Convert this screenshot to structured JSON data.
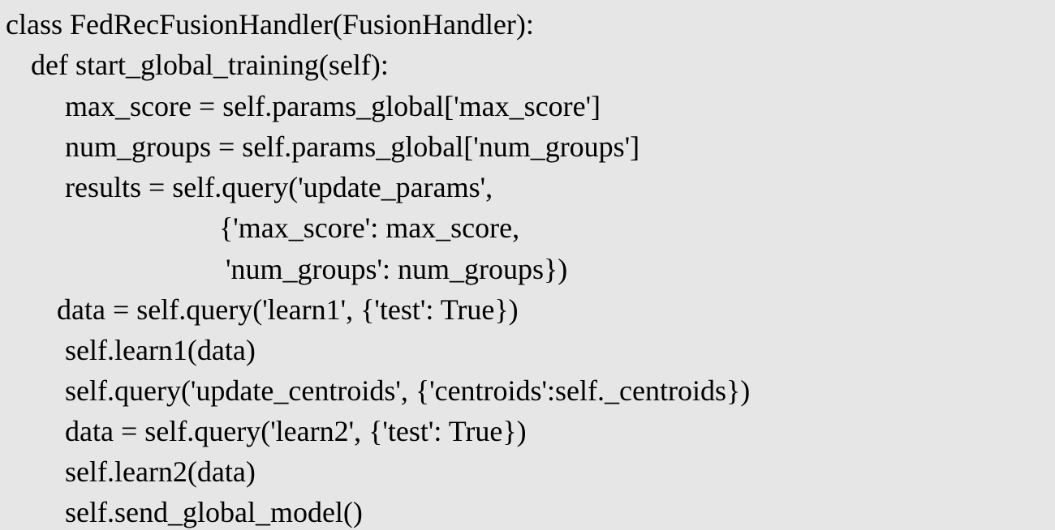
{
  "code": {
    "lines": [
      "class FedRecFusionHandler(FusionHandler):",
      "def start_global_training(self):",
      "max_score = self.params_global['max_score']",
      "num_groups = self.params_global['num_groups']",
      "results = self.query('update_params',",
      "{'max_score': max_score,",
      "'num_groups': num_groups})",
      "data = self.query('learn1', {'test': True})",
      "self.learn1(data)",
      "self.query('update_centroids', {'centroids':self._centroids})",
      "data = self.query('learn2', {'test': True})",
      "self.learn2(data)",
      "self.send_global_model()"
    ]
  }
}
